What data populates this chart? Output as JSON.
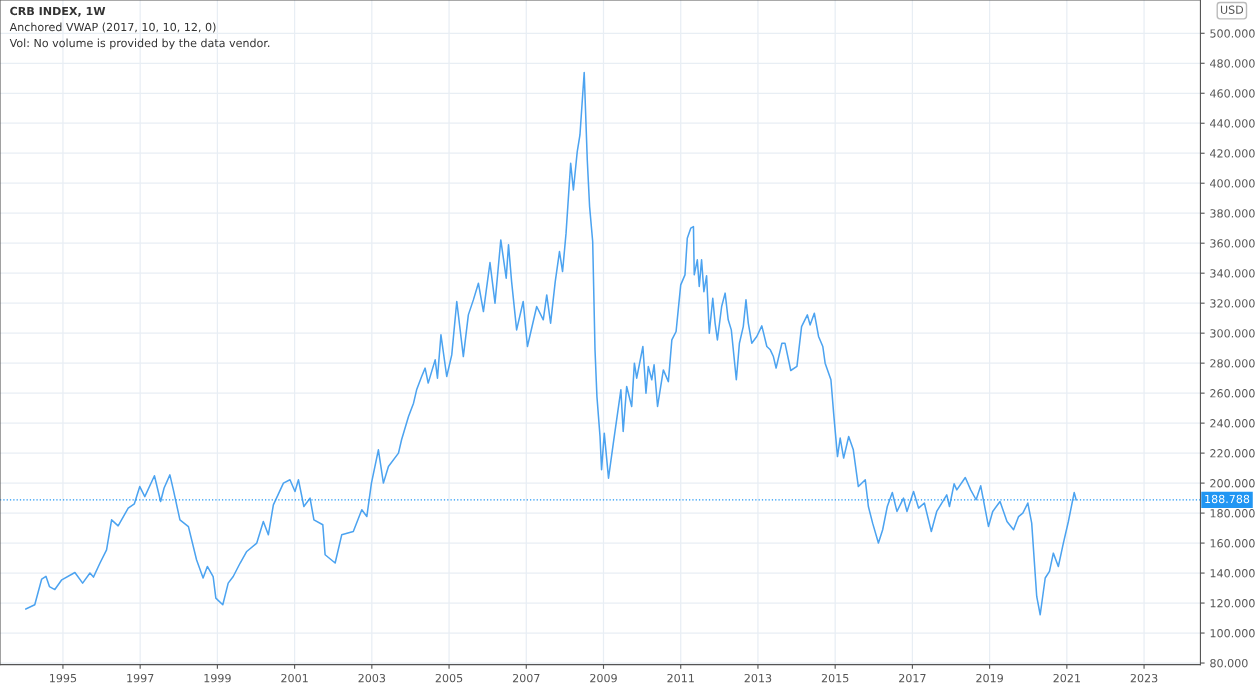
{
  "chart_data": {
    "type": "line",
    "title": "CRB INDEX, 1W",
    "annotations": [
      "Anchored VWAP (2017, 10, 10, 12, 0)",
      "Vol: No volume is provided by the data vendor."
    ],
    "ylabel": "USD",
    "x": [
      1994.04,
      1994.27,
      1994.45,
      1994.56,
      1994.65,
      1994.79,
      1994.97,
      1995.31,
      1995.51,
      1995.7,
      1995.79,
      1995.96,
      1996.13,
      1996.26,
      1996.43,
      1996.69,
      1996.85,
      1996.99,
      1997.12,
      1997.37,
      1997.53,
      1997.62,
      1997.77,
      1997.86,
      1998.03,
      1998.25,
      1998.46,
      1998.63,
      1998.74,
      1998.89,
      1998.96,
      1999.14,
      1999.28,
      1999.41,
      1999.59,
      1999.76,
      2000.02,
      2000.19,
      2000.32,
      2000.45,
      2000.71,
      2000.88,
      2001.01,
      2001.1,
      2001.24,
      2001.4,
      2001.5,
      2001.73,
      2001.79,
      2002.05,
      2002.22,
      2002.52,
      2002.74,
      2002.87,
      2002.99,
      2003.17,
      2003.3,
      2003.43,
      2003.69,
      2003.77,
      2003.95,
      2004.08,
      2004.16,
      2004.29,
      2004.38,
      2004.46,
      2004.64,
      2004.7,
      2004.79,
      2004.94,
      2005.07,
      2005.2,
      2005.37,
      2005.5,
      2005.63,
      2005.76,
      2005.89,
      2006.06,
      2006.19,
      2006.34,
      2006.48,
      2006.54,
      2006.62,
      2006.75,
      2006.92,
      2007.03,
      2007.27,
      2007.44,
      2007.53,
      2007.63,
      2007.75,
      2007.86,
      2007.94,
      2008.03,
      2008.15,
      2008.22,
      2008.32,
      2008.39,
      2008.5,
      2008.58,
      2008.64,
      2008.72,
      2008.78,
      2008.83,
      2008.91,
      2008.95,
      2009.02,
      2009.13,
      2009.26,
      2009.34,
      2009.45,
      2009.51,
      2009.6,
      2009.73,
      2009.8,
      2009.86,
      2010.02,
      2010.1,
      2010.16,
      2010.25,
      2010.31,
      2010.4,
      2010.55,
      2010.68,
      2010.77,
      2010.88,
      2010.94,
      2011.0,
      2011.11,
      2011.17,
      2011.26,
      2011.33,
      2011.35,
      2011.43,
      2011.48,
      2011.54,
      2011.6,
      2011.67,
      2011.74,
      2011.83,
      2011.89,
      2011.95,
      2012.06,
      2012.15,
      2012.23,
      2012.31,
      2012.44,
      2012.52,
      2012.62,
      2012.69,
      2012.75,
      2012.84,
      2012.97,
      2013.1,
      2013.23,
      2013.32,
      2013.4,
      2013.47,
      2013.62,
      2013.7,
      2013.85,
      2014.01,
      2014.13,
      2014.28,
      2014.35,
      2014.46,
      2014.57,
      2014.68,
      2014.74,
      2014.89,
      2014.96,
      2015.06,
      2015.13,
      2015.22,
      2015.35,
      2015.47,
      2015.6,
      2015.78,
      2015.86,
      2015.97,
      2016.12,
      2016.23,
      2016.35,
      2016.48,
      2016.6,
      2016.77,
      2016.86,
      2017.03,
      2017.16,
      2017.31,
      2017.49,
      2017.63,
      2017.89,
      2017.96,
      2018.08,
      2018.15,
      2018.37,
      2018.51,
      2018.65,
      2018.77,
      2018.97,
      2019.08,
      2019.27,
      2019.45,
      2019.62,
      2019.75,
      2019.86,
      2019.99,
      2020.09,
      2020.22,
      2020.31,
      2020.44,
      2020.55,
      2020.65,
      2020.78,
      2020.91,
      2021.04,
      2021.19,
      2021.24
    ],
    "series": [
      {
        "color": "#4ca3f0",
        "values": [
          116,
          118.9,
          136,
          137.8,
          131,
          129,
          135.5,
          140.4,
          133.3,
          140,
          137.3,
          146.7,
          155.5,
          175.5,
          171.5,
          183.3,
          186.2,
          197.7,
          191,
          204.9,
          187.7,
          196.7,
          205.5,
          195.5,
          175.5,
          171,
          148.9,
          136.7,
          144.4,
          137.7,
          123.3,
          118.9,
          133.3,
          137.7,
          146.7,
          154.4,
          160,
          174.4,
          165.5,
          185.5,
          200,
          202.2,
          194.4,
          202.2,
          184.4,
          190,
          175.5,
          172.2,
          152.2,
          146.7,
          165.5,
          167.7,
          182.2,
          177.7,
          200,
          222.2,
          200,
          211.1,
          220,
          228.9,
          244.4,
          253.3,
          262.2,
          271.1,
          276.7,
          266.7,
          282.2,
          270,
          298.9,
          271.1,
          285.5,
          321.1,
          284.4,
          312.2,
          322.2,
          333.3,
          314.4,
          347.1,
          320,
          362.2,
          336.7,
          358.9,
          334.4,
          302.2,
          321.1,
          291.1,
          317.8,
          308.9,
          325.5,
          306.7,
          334.4,
          354.4,
          341.1,
          366.7,
          413.3,
          395.5,
          421.1,
          432.2,
          473.8,
          415.5,
          384.4,
          361.1,
          288.9,
          257.7,
          231.1,
          208.9,
          233.3,
          203.3,
          227.7,
          242.2,
          262.2,
          234.4,
          264.4,
          251.1,
          280,
          270,
          291.1,
          260,
          277.8,
          268.9,
          278.9,
          251.1,
          275.5,
          267.7,
          295.5,
          301.1,
          316.7,
          332.2,
          338.9,
          363.3,
          370,
          371.1,
          338.9,
          348.9,
          331.1,
          348.9,
          327.7,
          338.3,
          300,
          323.3,
          306.7,
          295.5,
          317.8,
          326.7,
          308.9,
          302.2,
          268.9,
          293.3,
          304.4,
          322.2,
          306.7,
          293.3,
          297.8,
          304.9,
          291.1,
          288.9,
          284.4,
          276.7,
          293.3,
          293.3,
          275.1,
          277.8,
          304.4,
          312.2,
          305.5,
          313.3,
          297.8,
          291.1,
          280,
          268.9,
          246.7,
          217.7,
          230,
          216.7,
          231.1,
          222.2,
          197.7,
          202.2,
          184.4,
          173.3,
          160,
          168.9,
          184.4,
          193.7,
          181.1,
          190,
          181.1,
          194.4,
          183.3,
          186.7,
          167.7,
          181.1,
          192.2,
          184.4,
          199.5,
          195.5,
          203.7,
          195.5,
          188.9,
          198.2,
          171.1,
          181.1,
          187.7,
          174.4,
          168.9,
          177.7,
          180,
          186.7,
          173.3,
          124.4,
          112.2,
          136.7,
          141.1,
          153.3,
          144.4,
          160,
          174.4,
          193.7,
          188.9
        ]
      }
    ],
    "xlim": [
      1993.37,
      2024.46
    ],
    "ylim": [
      78.9,
      522.2
    ],
    "xticks": [
      1995,
      1997,
      1999,
      2001,
      2003,
      2005,
      2007,
      2009,
      2011,
      2013,
      2015,
      2017,
      2019,
      2021,
      2023
    ],
    "yticks": [
      {
        "value": 80,
        "label": "80.000"
      },
      {
        "value": 100,
        "label": "100.000"
      },
      {
        "value": 120,
        "label": "120.000"
      },
      {
        "value": 140,
        "label": "140.000"
      },
      {
        "value": 160,
        "label": "160.000"
      },
      {
        "value": 180,
        "label": "180.000"
      },
      {
        "value": 200,
        "label": "200.000"
      },
      {
        "value": 220,
        "label": "220.000"
      },
      {
        "value": 240,
        "label": "240.000"
      },
      {
        "value": 260,
        "label": "260.000"
      },
      {
        "value": 280,
        "label": "280.000"
      },
      {
        "value": 300,
        "label": "300.000"
      },
      {
        "value": 320,
        "label": "320.000"
      },
      {
        "value": 340,
        "label": "340.000"
      },
      {
        "value": 360,
        "label": "360.000"
      },
      {
        "value": 380,
        "label": "380.000"
      },
      {
        "value": 400,
        "label": "400.000"
      },
      {
        "value": 420,
        "label": "420.000"
      },
      {
        "value": 440,
        "label": "440.000"
      },
      {
        "value": 460,
        "label": "460.000"
      },
      {
        "value": 480,
        "label": "480.000"
      },
      {
        "value": 500,
        "label": "500.000"
      }
    ],
    "ref_lines": [
      {
        "axis": "y",
        "value": 188.788,
        "label": "188.788",
        "color": "#2196f3",
        "line_style": "dotted"
      }
    ],
    "grid": true,
    "line_style": "solid",
    "marker": "none"
  }
}
